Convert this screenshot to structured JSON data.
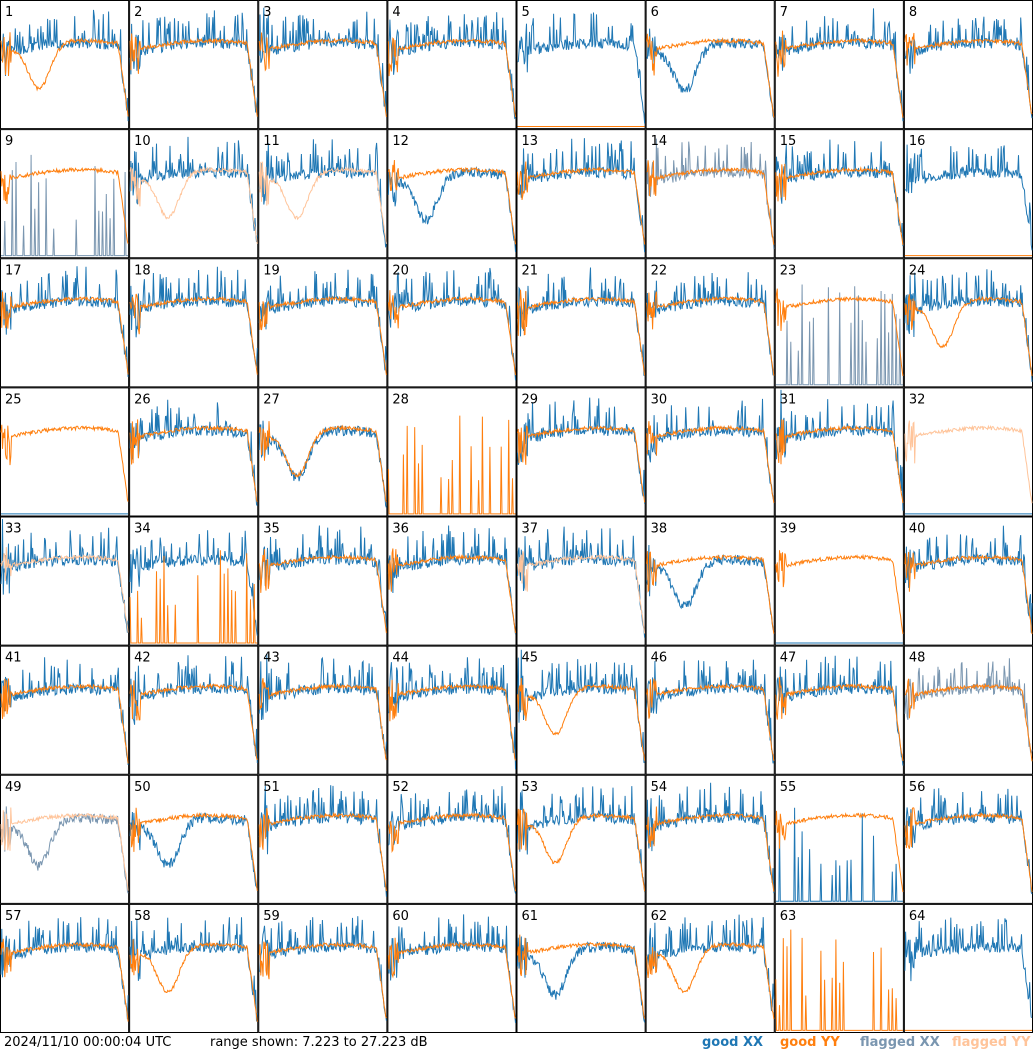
{
  "footer": {
    "timestamp": "2024/11/10 00:00:04 UTC",
    "range_text": "range shown: 7.223 to 27.223 dB"
  },
  "legend": {
    "good_xx": "good XX",
    "good_yy": "good YY",
    "flagged_xx": "flagged XX",
    "flagged_yy": "flagged YY"
  },
  "colors": {
    "good_xx": "#1f77b4",
    "good_yy": "#ff7f0e",
    "flagged_xx": "#7a96b0",
    "flagged_yy": "#ffc49a"
  },
  "chart_data": {
    "type": "line",
    "grid": true,
    "ylim": [
      7.223,
      27.223
    ],
    "y_unit": "dB",
    "panels": [
      {
        "label": "1",
        "xx": "n",
        "yy": "dip"
      },
      {
        "label": "2",
        "xx": "n",
        "yy": "n"
      },
      {
        "label": "3",
        "xx": "n",
        "yy": "n"
      },
      {
        "label": "4",
        "xx": "n",
        "yy": "n"
      },
      {
        "label": "5",
        "xx": "n",
        "yy": "zero"
      },
      {
        "label": "6",
        "xx": "dip",
        "yy": "n"
      },
      {
        "label": "7",
        "xx": "n",
        "yy": "n"
      },
      {
        "label": "8",
        "xx": "n",
        "yy": "n"
      },
      {
        "label": "9",
        "xx": "spiky",
        "yy": "n",
        "fxx": true
      },
      {
        "label": "10",
        "xx": "n",
        "yy": "dip",
        "fyy": true
      },
      {
        "label": "11",
        "xx": "n",
        "yy": "dip",
        "fyy": true
      },
      {
        "label": "12",
        "xx": "dip",
        "yy": "n"
      },
      {
        "label": "13",
        "xx": "n",
        "yy": "n"
      },
      {
        "label": "14",
        "xx": "n",
        "yy": "n",
        "fxx": true
      },
      {
        "label": "15",
        "xx": "n",
        "yy": "n"
      },
      {
        "label": "16",
        "xx": "n",
        "yy": "zero"
      },
      {
        "label": "17",
        "xx": "n",
        "yy": "n"
      },
      {
        "label": "18",
        "xx": "n",
        "yy": "n"
      },
      {
        "label": "19",
        "xx": "n",
        "yy": "n"
      },
      {
        "label": "20",
        "xx": "n",
        "yy": "n"
      },
      {
        "label": "21",
        "xx": "n",
        "yy": "n"
      },
      {
        "label": "22",
        "xx": "n",
        "yy": "n"
      },
      {
        "label": "23",
        "xx": "spiky",
        "yy": "n",
        "fxx": true
      },
      {
        "label": "24",
        "xx": "n",
        "yy": "dip"
      },
      {
        "label": "25",
        "xx": "zero",
        "yy": "n"
      },
      {
        "label": "26",
        "xx": "n",
        "yy": "n"
      },
      {
        "label": "27",
        "xx": "dip",
        "yy": "dip"
      },
      {
        "label": "28",
        "xx": "none",
        "yy": "spiky"
      },
      {
        "label": "29",
        "xx": "n",
        "yy": "n"
      },
      {
        "label": "30",
        "xx": "n",
        "yy": "n"
      },
      {
        "label": "31",
        "xx": "n",
        "yy": "n"
      },
      {
        "label": "32",
        "xx": "zero",
        "yy": "n",
        "fyy": true
      },
      {
        "label": "33",
        "xx": "n",
        "yy": "n",
        "fyy": true
      },
      {
        "label": "34",
        "xx": "n",
        "yy": "spiky"
      },
      {
        "label": "35",
        "xx": "n",
        "yy": "n"
      },
      {
        "label": "36",
        "xx": "n",
        "yy": "n"
      },
      {
        "label": "37",
        "xx": "n",
        "yy": "n",
        "fyy": true
      },
      {
        "label": "38",
        "xx": "dip",
        "yy": "n"
      },
      {
        "label": "39",
        "xx": "zero",
        "yy": "n"
      },
      {
        "label": "40",
        "xx": "n",
        "yy": "n"
      },
      {
        "label": "41",
        "xx": "n",
        "yy": "n"
      },
      {
        "label": "42",
        "xx": "n",
        "yy": "n"
      },
      {
        "label": "43",
        "xx": "n",
        "yy": "n"
      },
      {
        "label": "44",
        "xx": "n",
        "yy": "n"
      },
      {
        "label": "45",
        "xx": "n",
        "yy": "dip"
      },
      {
        "label": "46",
        "xx": "n",
        "yy": "n"
      },
      {
        "label": "47",
        "xx": "n",
        "yy": "n"
      },
      {
        "label": "48",
        "xx": "n",
        "yy": "n",
        "fxx": true
      },
      {
        "label": "49",
        "xx": "dip",
        "yy": "n",
        "fxx": true,
        "fyy": true
      },
      {
        "label": "50",
        "xx": "dip",
        "yy": "n"
      },
      {
        "label": "51",
        "xx": "n",
        "yy": "n"
      },
      {
        "label": "52",
        "xx": "n",
        "yy": "n"
      },
      {
        "label": "53",
        "xx": "n",
        "yy": "dip"
      },
      {
        "label": "54",
        "xx": "n",
        "yy": "n"
      },
      {
        "label": "55",
        "xx": "spiky",
        "yy": "n"
      },
      {
        "label": "56",
        "xx": "n",
        "yy": "n"
      },
      {
        "label": "57",
        "xx": "n",
        "yy": "n"
      },
      {
        "label": "58",
        "xx": "n",
        "yy": "dip"
      },
      {
        "label": "59",
        "xx": "n",
        "yy": "n"
      },
      {
        "label": "60",
        "xx": "n",
        "yy": "n"
      },
      {
        "label": "61",
        "xx": "dip",
        "yy": "n"
      },
      {
        "label": "62",
        "xx": "n",
        "yy": "dip"
      },
      {
        "label": "63",
        "xx": "none",
        "yy": "spiky"
      },
      {
        "label": "64",
        "xx": "n",
        "yy": "zero"
      }
    ]
  }
}
